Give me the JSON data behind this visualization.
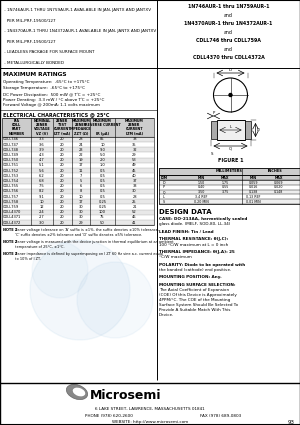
{
  "title_left_lines": [
    " - 1N746AUR-1 THRU 1N759AUR-1 AVAILABLE IN JAN, JANTX AND JANTXV",
    "   PER MIL-PRF-19500/127",
    " - 1N4370AUR-1 THRU 1N4372AUR-1 AVAILABLE IN JAN, JANTX AND JANTXV",
    "   PER MIL-PRF-19500/127",
    " - LEADLESS PACKAGE FOR SURFACE MOUNT",
    " - METALLURGICALLY BONDED"
  ],
  "title_right_bold": [
    "1N746AUR-1 thru 1N759AUR-1",
    "1N4370AUR-1 thru 1N4372AUR-1",
    "CDLL746 thru CDLL759A",
    "CDLL4370 thru CDLL4372A"
  ],
  "title_right_and": "and",
  "max_ratings_title": "MAXIMUM RATINGS",
  "max_ratings": [
    "Operating Temperature:  -65°C to +175°C",
    "Storage Temperature:  -65°C to +175°C",
    "DC Power Dissipation:  500 mW @ TⁱC = +25°C",
    "Power Derating:  3.3 mW / °C above TⁱC = +25°C",
    "Forward Voltage @ 200mA: 1.1 volts maximum"
  ],
  "elec_char_title": "ELECTRICAL CHARACTERISTICS @ 25°C",
  "table_col_headers": [
    "EIA\nCDLL\nPART\nNUMBER",
    "NOMINAL\nZENER\nVOLTAGE\nVZ (V)",
    "ZENER\nTEST\nCURRENT\nIZT (mA)",
    "MAXIMUM\nZENER\nIMPEDANCE\nZZT (Ω)",
    "MAXIMUM\nREVERSE CURRENT\n\nIR (μA)",
    "MAXIMUM\nZENER\nCURRENT\nIZM (mA)"
  ],
  "table_data": [
    [
      "CDLL746",
      "3.3",
      "20",
      "28",
      "85",
      "38"
    ],
    [
      "CDLL747",
      "3.6",
      "20",
      "24",
      "10",
      "35"
    ],
    [
      "CDLL748",
      "3.9",
      "20",
      "23",
      "9.0",
      "32"
    ],
    [
      "CDLL749",
      "4.3",
      "20",
      "22",
      "5.0",
      "29"
    ],
    [
      "CDLL750",
      "4.7",
      "20",
      "19",
      "2.0",
      "53"
    ],
    [
      "CDLL751",
      "5.1",
      "20",
      "17",
      "1.0",
      "49"
    ],
    [
      "CDLL752",
      "5.6",
      "20",
      "11",
      "0.5",
      "45"
    ],
    [
      "CDLL753",
      "6.2",
      "20",
      "7",
      "0.5",
      "40"
    ],
    [
      "CDLL754",
      "6.8",
      "20",
      "5",
      "0.5",
      "37"
    ],
    [
      "CDLL755",
      "7.5",
      "20",
      "6",
      "0.5",
      "33"
    ],
    [
      "CDLL756",
      "8.2",
      "20",
      "8",
      "0.5",
      "30"
    ],
    [
      "CDLL757",
      "9.1",
      "20",
      "10",
      "0.5",
      "28"
    ],
    [
      "CDLL758",
      "10",
      "20",
      "17",
      "0.25",
      "25"
    ],
    [
      "CDLL759",
      "12",
      "20",
      "30",
      "0.25",
      "21"
    ],
    [
      "CDLL4370",
      "2.4",
      "20",
      "30",
      "100",
      "52"
    ],
    [
      "CDLL4371",
      "2.7",
      "20",
      "30",
      "75",
      "46"
    ],
    [
      "CDLL4372",
      "3.0",
      "20",
      "29",
      "50",
      "41"
    ]
  ],
  "notes": [
    [
      "NOTE 1",
      "Zener voltage tolerance on 'A' suffix is ±1%, the suffix denotes ±10% tolerance,\n'C' suffix denotes ±2% tolerance and 'D' suffix denotes ±5% tolerance."
    ],
    [
      "NOTE 2",
      "Zener voltage is measured with the device junction in thermal equilibrium at an ambient\ntemperature of 25°C, ±1°C."
    ],
    [
      "NOTE 3",
      "Zener impedance is defined by superimposing on I ZT 60 Hz sine a.c. current equal\nto 10% of I ZT."
    ]
  ],
  "figure_caption": "FIGURE 1",
  "dim_rows": [
    [
      "D",
      "1.50",
      "1.75",
      "0.059",
      "0.069"
    ],
    [
      "P",
      "0.40",
      "0.55",
      "0.016",
      "0.020"
    ],
    [
      "Q",
      "3.50",
      "3.75",
      "0.138",
      "0.148"
    ],
    [
      "L",
      "3.4 REF",
      "",
      "0.13 REF",
      ""
    ],
    [
      "S",
      "0.20 MIN",
      "",
      "0.01 MIN",
      ""
    ]
  ],
  "design_data_title": "DESIGN DATA",
  "design_data_lines": [
    [
      "bold",
      "CASE: DO-213AA, hermetically sealed"
    ],
    [
      "normal",
      "glass diode. (MELF, SOD-80, LL-34)"
    ],
    [
      "spacer",
      ""
    ],
    [
      "bold",
      "LEAD FINISH: Tin / Lead"
    ],
    [
      "spacer",
      ""
    ],
    [
      "bold",
      "THERMAL RESISTANCE: θ(J,C):"
    ],
    [
      "normal",
      "100 °C/W maximum at L = 0 inch"
    ],
    [
      "spacer",
      ""
    ],
    [
      "bold",
      "THERMAL IMPEDANCE: θ(J,A): 25"
    ],
    [
      "normal",
      "°C/W maximum"
    ],
    [
      "spacer",
      ""
    ],
    [
      "bold",
      "POLARITY: Diode to be operated with"
    ],
    [
      "normal",
      "the banded (cathode) end positive."
    ],
    [
      "spacer",
      ""
    ],
    [
      "bold",
      "MOUNTING POSITION: Any."
    ],
    [
      "spacer",
      ""
    ],
    [
      "bold",
      "MOUNTING SURFACE SELECTION:"
    ],
    [
      "normal",
      "The Axial Coefficient of Expansion"
    ],
    [
      "normal",
      "(COE) Of this Device is Approximately"
    ],
    [
      "normal",
      "4PPM/°C. The COE of the Mounting"
    ],
    [
      "normal",
      "Surface System Should Be Selected To"
    ],
    [
      "normal",
      "Provide A Suitable Match With This"
    ],
    [
      "normal",
      "Device."
    ]
  ],
  "footer_address": "6 LAKE STREET, LAWRENCE, MASSACHUSETTS 01841",
  "footer_phone": "PHONE (978) 620-2600",
  "footer_fax": "FAX (978) 689-0803",
  "footer_website": "WEBSITE: http://www.microsemi.com",
  "footer_page": "93",
  "bg_color": "#ffffff"
}
